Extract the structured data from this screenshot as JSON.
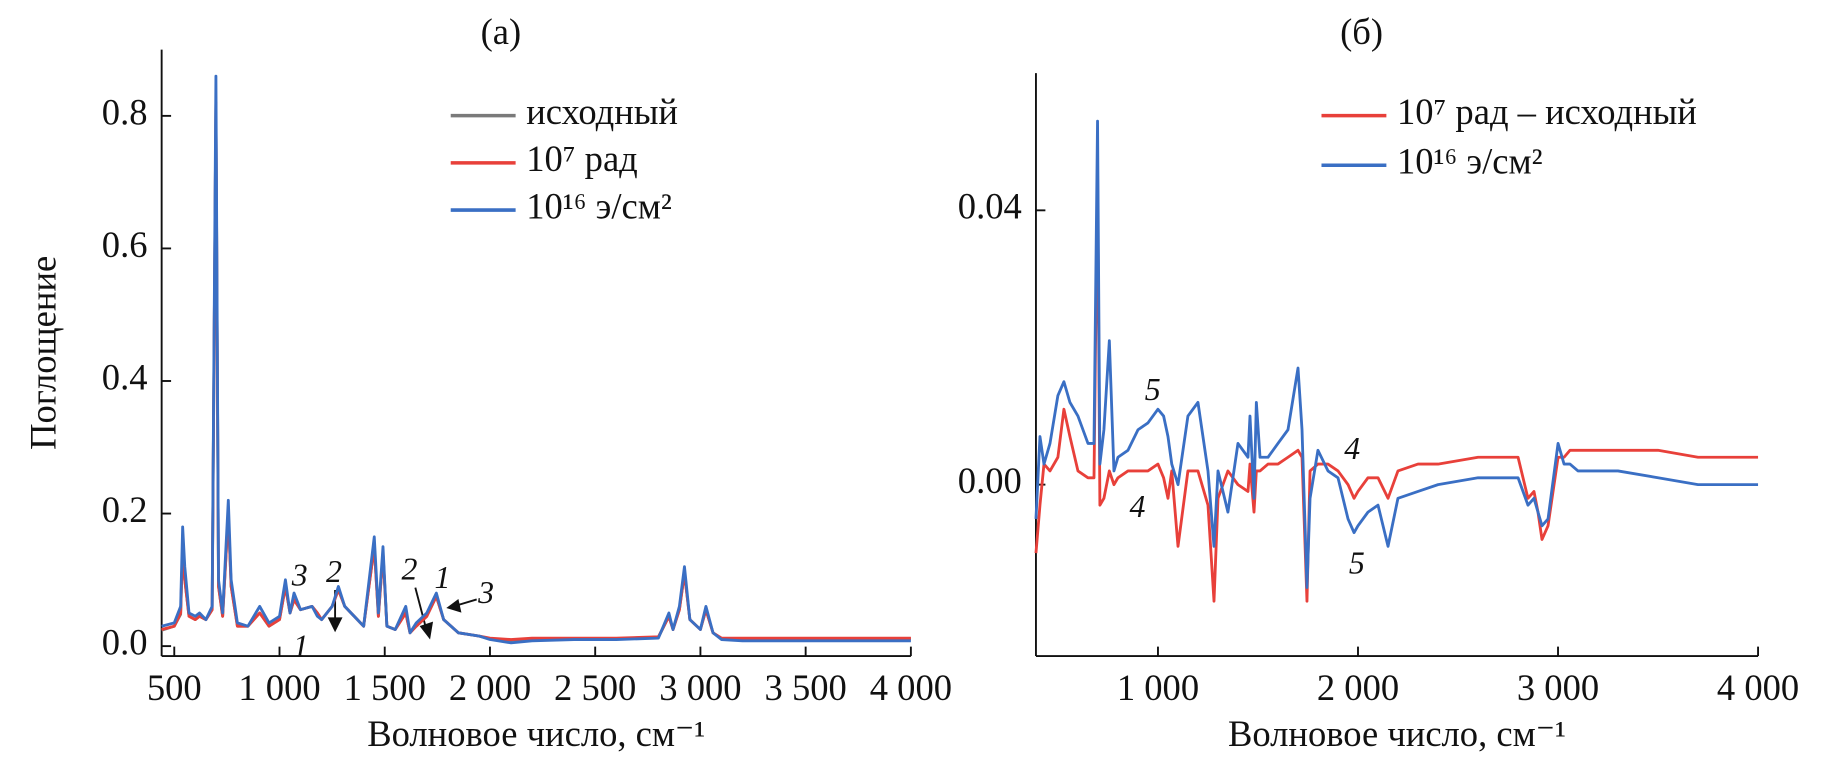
{
  "chart_data": [
    {
      "type": "line",
      "title": "(а)",
      "xlabel": "Волновое число, см⁻¹",
      "ylabel": "Поглощение",
      "xlim": [
        440,
        4000
      ],
      "ylim": [
        -0.015,
        0.9
      ],
      "xticks": [
        500,
        {
          "value": 1000,
          "label": "1 000"
        },
        {
          "value": 1500,
          "label": "1 500"
        },
        {
          "value": 2000,
          "label": "2 000"
        },
        {
          "value": 2500,
          "label": "2 500"
        },
        {
          "value": 3000,
          "label": "3 000"
        },
        {
          "value": 3500,
          "label": "3 500"
        },
        {
          "value": 4000,
          "label": "4 000"
        }
      ],
      "yticks": [
        {
          "value": 0,
          "label": "0.0"
        },
        0.2,
        0.4,
        0.6,
        0.8
      ],
      "legend": "upper right",
      "x": [
        440,
        500,
        530,
        540,
        550,
        570,
        600,
        620,
        650,
        680,
        698,
        710,
        730,
        757,
        770,
        800,
        850,
        906,
        950,
        1000,
        1028,
        1050,
        1069,
        1100,
        1155,
        1180,
        1200,
        1250,
        1280,
        1310,
        1370,
        1400,
        1450,
        1470,
        1492,
        1510,
        1550,
        1600,
        1620,
        1650,
        1700,
        1745,
        1780,
        1850,
        1950,
        2000,
        2100,
        2200,
        2400,
        2600,
        2800,
        2850,
        2870,
        2900,
        2924,
        2950,
        3000,
        3026,
        3060,
        3100,
        3200,
        3500,
        4000
      ],
      "series": [
        {
          "name": "исходный",
          "color": "#7a7a7a",
          "values": [
            0.024,
            0.03,
            0.048,
            0.15,
            0.1,
            0.045,
            0.04,
            0.045,
            0.04,
            0.055,
            0.82,
            0.09,
            0.045,
            0.2,
            0.09,
            0.03,
            0.03,
            0.05,
            0.03,
            0.04,
            0.09,
            0.05,
            0.07,
            0.055,
            0.06,
            0.05,
            0.04,
            0.06,
            0.085,
            0.06,
            0.04,
            0.03,
            0.15,
            0.045,
            0.14,
            0.03,
            0.025,
            0.05,
            0.02,
            0.03,
            0.045,
            0.075,
            0.04,
            0.02,
            0.015,
            0.011,
            0.009,
            0.011,
            0.011,
            0.011,
            0.013,
            0.045,
            0.025,
            0.055,
            0.11,
            0.04,
            0.025,
            0.055,
            0.02,
            0.011,
            0.011,
            0.011,
            0.011
          ]
        },
        {
          "name": "10⁷ рад",
          "color": "#e8403a",
          "values": [
            0.025,
            0.03,
            0.05,
            0.15,
            0.1,
            0.045,
            0.04,
            0.045,
            0.04,
            0.055,
            0.82,
            0.09,
            0.045,
            0.2,
            0.09,
            0.03,
            0.03,
            0.05,
            0.03,
            0.04,
            0.09,
            0.05,
            0.07,
            0.055,
            0.06,
            0.05,
            0.04,
            0.06,
            0.085,
            0.06,
            0.04,
            0.03,
            0.15,
            0.045,
            0.14,
            0.03,
            0.025,
            0.05,
            0.02,
            0.03,
            0.045,
            0.075,
            0.04,
            0.02,
            0.015,
            0.012,
            0.01,
            0.012,
            0.012,
            0.012,
            0.014,
            0.045,
            0.025,
            0.055,
            0.11,
            0.04,
            0.025,
            0.055,
            0.02,
            0.012,
            0.012,
            0.012,
            0.012
          ]
        },
        {
          "name": "10¹⁶ э/см²",
          "color": "#3a6fc4",
          "values": [
            0.03,
            0.035,
            0.06,
            0.18,
            0.12,
            0.05,
            0.045,
            0.05,
            0.04,
            0.06,
            0.86,
            0.1,
            0.05,
            0.22,
            0.1,
            0.035,
            0.03,
            0.06,
            0.035,
            0.045,
            0.1,
            0.05,
            0.08,
            0.055,
            0.06,
            0.045,
            0.04,
            0.06,
            0.09,
            0.06,
            0.04,
            0.03,
            0.165,
            0.05,
            0.15,
            0.03,
            0.025,
            0.06,
            0.02,
            0.035,
            0.05,
            0.08,
            0.04,
            0.02,
            0.015,
            0.01,
            0.005,
            0.008,
            0.01,
            0.01,
            0.012,
            0.05,
            0.025,
            0.06,
            0.12,
            0.04,
            0.025,
            0.06,
            0.02,
            0.01,
            0.008,
            0.008,
            0.008
          ]
        }
      ],
      "annotations": [
        "3",
        "2",
        "1",
        "2",
        "1",
        "3"
      ]
    },
    {
      "type": "line",
      "title": "(б)",
      "xlabel": "Волновое число, см⁻¹",
      "xlim": [
        390,
        4000
      ],
      "ylim": [
        -0.025,
        0.06
      ],
      "xticks": [
        {
          "value": 1000,
          "label": "1 000"
        },
        {
          "value": 2000,
          "label": "2 000"
        },
        {
          "value": 3000,
          "label": "3 000"
        },
        {
          "value": 4000,
          "label": "4 000"
        }
      ],
      "yticks": [
        {
          "value": 0,
          "label": "0.00"
        },
        {
          "value": 0.04,
          "label": "0.04"
        }
      ],
      "legend": "upper right",
      "x": [
        390,
        410,
        430,
        460,
        500,
        530,
        560,
        600,
        650,
        680,
        698,
        710,
        730,
        757,
        780,
        800,
        850,
        900,
        950,
        1000,
        1028,
        1050,
        1069,
        1100,
        1150,
        1200,
        1250,
        1280,
        1300,
        1350,
        1400,
        1450,
        1460,
        1480,
        1492,
        1510,
        1550,
        1600,
        1650,
        1700,
        1720,
        1745,
        1760,
        1800,
        1850,
        1900,
        1950,
        1980,
        2000,
        2050,
        2100,
        2150,
        2200,
        2300,
        2400,
        2600,
        2800,
        2850,
        2880,
        2900,
        2920,
        2950,
        3000,
        3030,
        3060,
        3100,
        3300,
        3500,
        3700,
        4000
      ],
      "series": [
        {
          "name": "10⁷ рад – исходный",
          "color": "#e8403a",
          "values": [
            -0.01,
            -0.003,
            0.003,
            0.002,
            0.004,
            0.011,
            0.007,
            0.002,
            0.001,
            0.001,
            0.046,
            -0.003,
            -0.002,
            0.002,
            0.0,
            0.001,
            0.002,
            0.002,
            0.002,
            0.003,
            0.001,
            -0.002,
            0.002,
            -0.009,
            0.002,
            0.002,
            -0.003,
            -0.017,
            -0.002,
            0.002,
            0.0,
            -0.001,
            0.003,
            -0.004,
            0.002,
            0.002,
            0.003,
            0.003,
            0.004,
            0.005,
            0.004,
            -0.017,
            0.002,
            0.003,
            0.003,
            0.002,
            0.0,
            -0.002,
            -0.001,
            0.001,
            0.001,
            -0.002,
            0.002,
            0.003,
            0.003,
            0.004,
            0.004,
            -0.002,
            -0.001,
            -0.004,
            -0.008,
            -0.006,
            0.004,
            0.004,
            0.005,
            0.005,
            0.005,
            0.005,
            0.004,
            0.004
          ]
        },
        {
          "name": "10¹⁶ э/см²",
          "color": "#3a6fc4",
          "values": [
            -0.005,
            0.007,
            0.003,
            0.006,
            0.013,
            0.015,
            0.012,
            0.01,
            0.006,
            0.006,
            0.053,
            0.003,
            0.008,
            0.021,
            0.002,
            0.004,
            0.005,
            0.008,
            0.009,
            0.011,
            0.01,
            0.007,
            0.003,
            0.0,
            0.01,
            0.012,
            0.002,
            -0.009,
            0.002,
            -0.004,
            0.006,
            0.004,
            0.01,
            -0.002,
            0.012,
            0.004,
            0.004,
            0.006,
            0.008,
            0.017,
            0.008,
            -0.015,
            -0.002,
            0.005,
            0.002,
            0.001,
            -0.005,
            -0.007,
            -0.006,
            -0.004,
            -0.003,
            -0.009,
            -0.002,
            -0.001,
            0.0,
            0.001,
            0.001,
            -0.003,
            -0.002,
            -0.004,
            -0.006,
            -0.005,
            0.006,
            0.003,
            0.003,
            0.002,
            0.002,
            0.001,
            0.0,
            0.0
          ]
        }
      ],
      "annotations": [
        "5",
        "4",
        "4",
        "5"
      ]
    }
  ]
}
